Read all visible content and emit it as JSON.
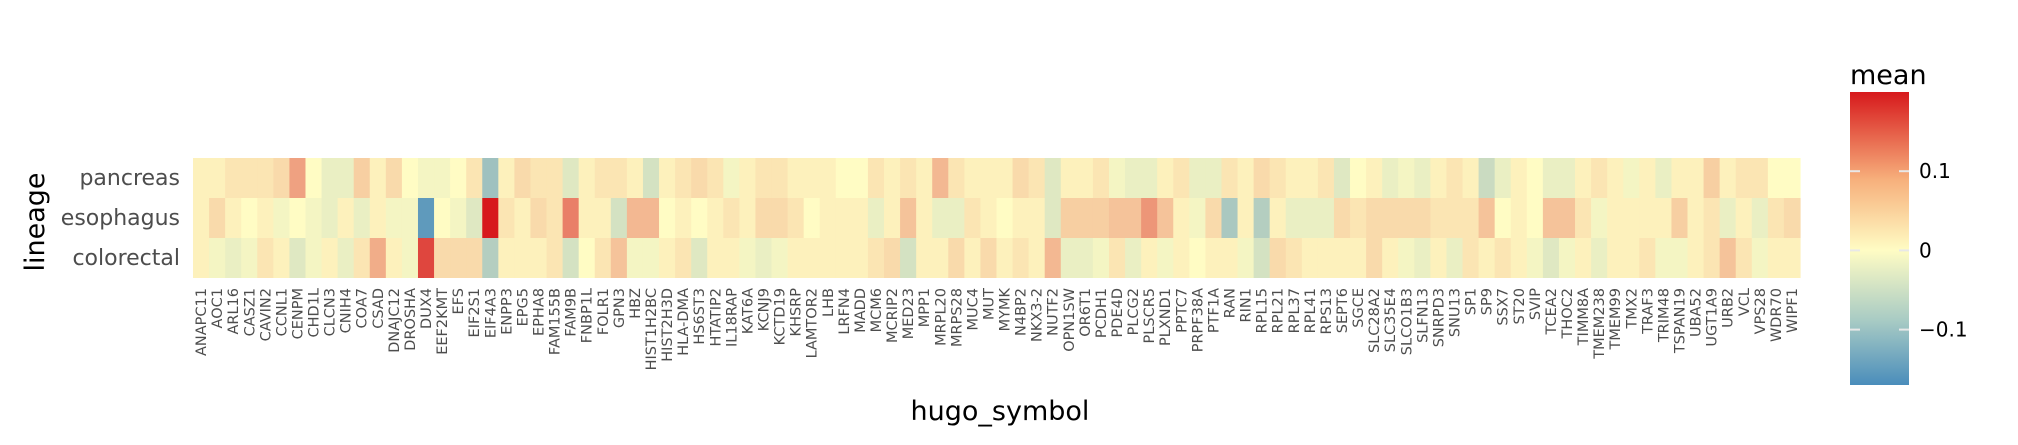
{
  "chart_data": {
    "type": "heatmap",
    "xlabel": "hugo_symbol",
    "ylabel": "lineage",
    "legend_title": "mean",
    "colorbar_ticks": [
      "0.1",
      "0",
      "−0.1"
    ],
    "colorbar_tick_values": [
      0.1,
      0,
      -0.1
    ],
    "color_range": [
      -0.17,
      0.2
    ],
    "colors": {
      "low": "#4a8dbb",
      "mid": "#fffcc4",
      "high": "#d7191c"
    },
    "rows": [
      "pancreas",
      "esophagus",
      "colorectal"
    ],
    "columns": [
      "ANAPC11",
      "AOC1",
      "ARL16",
      "CASZ1",
      "CAVIN2",
      "CCNL1",
      "CENPM",
      "CHD1L",
      "CLCN3",
      "CNIH4",
      "COA7",
      "CSAD",
      "DNAJC12",
      "DROSHA",
      "DUX4",
      "EEF2KMT",
      "EFS",
      "EIF2S1",
      "EIF4A3",
      "ENPP3",
      "EPG5",
      "EPHA8",
      "FAM155B",
      "FAM9B",
      "FNBP1L",
      "FOLR1",
      "GPN3",
      "HBZ",
      "HIST1H2BC",
      "HIST2H3D",
      "HLA-DMA",
      "HS6ST3",
      "HTATIP2",
      "IL18RAP",
      "KAT6A",
      "KCNJ9",
      "KCTD19",
      "KHSRP",
      "LAMTOR2",
      "LHB",
      "LRFN4",
      "MADD",
      "MCM6",
      "MCRIP2",
      "MED23",
      "MPP1",
      "MRPL20",
      "MRPS28",
      "MUC4",
      "MUT",
      "MYMK",
      "N4BP2",
      "NKX3-2",
      "NUTF2",
      "OPN1SW",
      "OR6T1",
      "PCDH1",
      "PDE4D",
      "PLCG2",
      "PLSCR5",
      "PLXND1",
      "PPTC7",
      "PRPF38A",
      "PTF1A",
      "RAN",
      "RIN1",
      "RPL15",
      "RPL21",
      "RPL37",
      "RPL41",
      "RPS13",
      "SEPT6",
      "SGCE",
      "SLC28A2",
      "SLC35E4",
      "SLCO1B3",
      "SLFN13",
      "SNRPD3",
      "SNU13",
      "SP1",
      "SP9",
      "SSX7",
      "ST20",
      "SVIP",
      "TCEA2",
      "THOC2",
      "TIMM8A",
      "TMEM238",
      "TMEM99",
      "TMX2",
      "TRAF3",
      "TRIM48",
      "TSPAN19",
      "UBA52",
      "UGT1A9",
      "URB2",
      "VCL",
      "VPS28",
      "WDR70",
      "WIPF1"
    ],
    "x_tick_labels": [
      "ANAPC11",
      "AOC1",
      "ARL16",
      "CASZ1",
      "CAVIN2",
      "CCNL1",
      "CENPM",
      "CHD1L",
      "CLCN3",
      "CNIH4",
      "COA7",
      "CSAD",
      "DNAJC12",
      "DROSHA",
      "DUX4",
      "EEF2KMT",
      "EFS",
      "EIF2S1",
      "EIF4A3",
      "ENPP3",
      "EPG5",
      "EPHA8",
      "FAM155B",
      "FAM9B",
      "FNBP1L",
      "FOLR1",
      "GPN3",
      "HBZ",
      "HIST1H2BC",
      "HIST2H3D",
      "HLA-DMA",
      "HS6ST3",
      "HTATIP2",
      "IL18RAP",
      "KAT6A",
      "KCNJ9",
      "KCTD19",
      "KHSRP",
      "LAMTOR2",
      "LHB",
      "LRFN4",
      "MADD",
      "MCM6",
      "MCRIP2",
      "MED23",
      "MPP1",
      "MRPL20",
      "MRPS28",
      "MUC4",
      "MUT",
      "MYMK",
      "N4BP2",
      "NKX3-2",
      "NUTF2",
      "OPN1SW",
      "OR6T1",
      "PCDH1",
      "PDE4D",
      "PLCG2",
      "PLSCR5",
      "PLXND1",
      "PPTC7",
      "PRPF38A",
      "PTF1A",
      "RAN",
      "RIN1",
      "RPL15",
      "RPL21",
      "RPL37",
      "RPL41",
      "RPS13",
      "SEPT6",
      "SGCE",
      "SLC28A2",
      "SLC35E4",
      "SLCO1B3",
      "SLFN13",
      "SNRPD3",
      "SNU13",
      "SP1",
      "SP9",
      "SSX7",
      "ST20",
      "SVIP",
      "TCEA2",
      "THOC2",
      "TIMM8A",
      "TMEM238",
      "TMEM99",
      "TMX2",
      "TRAF3",
      "TRIM48",
      "TSPAN19",
      "UBA52",
      "UGT1A9",
      "URB2",
      "VCL",
      "VPS28",
      "WDR70",
      "WIPF1"
    ],
    "values": [
      [
        0.01,
        0.01,
        0.02,
        0.02,
        0.02,
        0.03,
        0.08,
        0.0,
        -0.02,
        -0.02,
        0.04,
        0.01,
        0.03,
        0.0,
        -0.01,
        -0.01,
        0.0,
        0.02,
        -0.09,
        0.01,
        0.03,
        0.02,
        0.02,
        -0.03,
        0.01,
        0.02,
        0.02,
        0.01,
        -0.04,
        0.01,
        0.02,
        0.03,
        0.02,
        -0.01,
        0.01,
        0.02,
        0.02,
        0.01,
        0.01,
        0.01,
        0.0,
        0.0,
        0.02,
        0.01,
        0.02,
        0.01,
        0.06,
        0.02,
        0.01,
        0.01,
        0.01,
        0.03,
        0.02,
        -0.03,
        0.01,
        0.01,
        0.02,
        -0.01,
        -0.02,
        -0.02,
        0.01,
        0.02,
        -0.02,
        -0.02,
        0.02,
        0.01,
        0.03,
        0.02,
        0.01,
        0.01,
        0.02,
        -0.03,
        0.0,
        0.01,
        -0.02,
        -0.01,
        -0.02,
        0.01,
        0.02,
        0.01,
        -0.05,
        -0.02,
        0.01,
        0.0,
        -0.02,
        -0.02,
        0.01,
        0.02,
        0.01,
        -0.01,
        0.01,
        -0.02,
        0.01,
        0.01,
        0.04,
        0.01,
        0.02,
        0.02,
        0.0,
        0.0
      ],
      [
        0.01,
        0.03,
        0.01,
        0.0,
        0.01,
        -0.01,
        0.0,
        -0.01,
        -0.02,
        0.01,
        -0.02,
        0.01,
        -0.01,
        -0.01,
        -0.15,
        0.0,
        -0.01,
        -0.03,
        0.2,
        0.02,
        0.01,
        0.03,
        0.02,
        0.11,
        0.01,
        0.01,
        -0.04,
        0.06,
        0.06,
        0.0,
        0.01,
        0.0,
        0.01,
        0.02,
        0.01,
        0.03,
        0.03,
        0.02,
        0.0,
        0.01,
        0.01,
        0.01,
        -0.02,
        0.01,
        0.05,
        0.01,
        -0.02,
        -0.02,
        0.02,
        0.01,
        0.0,
        0.01,
        0.01,
        -0.03,
        0.04,
        0.04,
        0.04,
        0.05,
        0.05,
        0.09,
        0.05,
        0.01,
        -0.01,
        0.03,
        -0.08,
        0.01,
        -0.07,
        0.01,
        -0.02,
        -0.02,
        -0.02,
        0.03,
        0.02,
        0.03,
        0.03,
        0.03,
        0.03,
        0.02,
        0.02,
        0.02,
        0.05,
        0.0,
        0.01,
        0.0,
        0.05,
        0.05,
        0.02,
        -0.01,
        0.01,
        0.01,
        0.01,
        0.01,
        0.04,
        0.01,
        0.02,
        -0.02,
        0.01,
        -0.02,
        0.02,
        0.03
      ],
      [
        0.01,
        -0.01,
        -0.02,
        -0.01,
        0.02,
        0.01,
        -0.03,
        -0.01,
        0.01,
        -0.02,
        0.02,
        0.07,
        0.01,
        -0.01,
        0.16,
        0.03,
        0.03,
        0.03,
        -0.07,
        0.01,
        0.01,
        0.01,
        0.02,
        -0.04,
        0.0,
        0.02,
        0.05,
        -0.01,
        -0.01,
        0.01,
        0.02,
        -0.03,
        0.01,
        0.01,
        -0.01,
        -0.02,
        -0.01,
        0.01,
        0.01,
        0.01,
        0.01,
        0.01,
        0.02,
        0.03,
        -0.04,
        0.01,
        0.01,
        0.03,
        0.01,
        0.03,
        0.01,
        0.02,
        0.01,
        0.06,
        -0.02,
        -0.02,
        -0.01,
        0.02,
        -0.02,
        0.01,
        -0.01,
        0.01,
        0.0,
        0.01,
        0.01,
        -0.01,
        -0.04,
        0.03,
        0.02,
        0.01,
        0.01,
        0.01,
        0.01,
        0.03,
        0.01,
        -0.01,
        -0.02,
        0.01,
        -0.02,
        0.02,
        0.01,
        0.02,
        0.01,
        -0.01,
        -0.03,
        -0.01,
        0.01,
        -0.02,
        0.01,
        0.01,
        0.02,
        -0.01,
        -0.01,
        0.01,
        0.02,
        0.05,
        0.02,
        -0.01,
        0.01,
        0.01
      ]
    ]
  }
}
